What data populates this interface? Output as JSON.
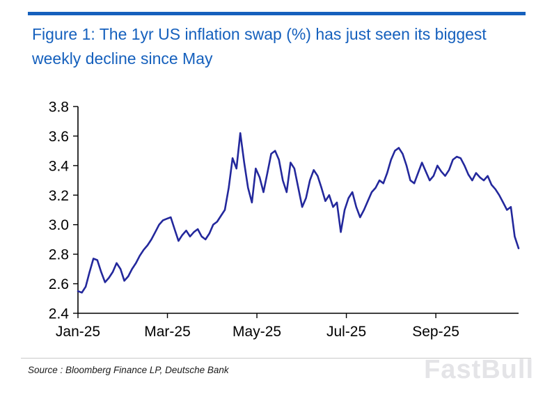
{
  "figure": {
    "title": "Figure 1: The 1yr US inflation swap (%) has just seen its biggest weekly decline since May",
    "accent_color": "#1560bd"
  },
  "footer": {
    "source": "Source : Bloomberg Finance LP, Deutsche Bank",
    "watermark": "FastBull"
  },
  "chart_data": {
    "type": "line",
    "title": "Figure 1: The 1yr US inflation swap (%) has just seen its biggest weekly decline since May",
    "series_name": "1yr US inflation swap (%)",
    "line_color": "#23289c",
    "grid": false,
    "legend": "none",
    "ylim": [
      2.4,
      3.8
    ],
    "yticks": [
      2.4,
      2.6,
      2.8,
      3.0,
      3.2,
      3.4,
      3.6,
      3.8
    ],
    "x_months_range": [
      0,
      9.85
    ],
    "xticks": [
      {
        "pos": 0,
        "label": "Jan-25"
      },
      {
        "pos": 2,
        "label": "Mar-25"
      },
      {
        "pos": 4,
        "label": "May-25"
      },
      {
        "pos": 6,
        "label": "Jul-25"
      },
      {
        "pos": 8,
        "label": "Sep-25"
      }
    ],
    "values": [
      2.55,
      2.54,
      2.58,
      2.68,
      2.77,
      2.76,
      2.68,
      2.61,
      2.64,
      2.68,
      2.74,
      2.7,
      2.62,
      2.65,
      2.7,
      2.74,
      2.79,
      2.83,
      2.86,
      2.9,
      2.95,
      3.0,
      3.03,
      3.04,
      3.05,
      2.97,
      2.89,
      2.93,
      2.96,
      2.92,
      2.95,
      2.97,
      2.92,
      2.9,
      2.94,
      3.0,
      3.02,
      3.06,
      3.1,
      3.25,
      3.45,
      3.38,
      3.62,
      3.42,
      3.25,
      3.15,
      3.38,
      3.32,
      3.22,
      3.35,
      3.48,
      3.5,
      3.44,
      3.3,
      3.22,
      3.42,
      3.38,
      3.25,
      3.12,
      3.18,
      3.3,
      3.37,
      3.33,
      3.25,
      3.16,
      3.2,
      3.12,
      3.15,
      2.95,
      3.1,
      3.18,
      3.22,
      3.12,
      3.05,
      3.1,
      3.16,
      3.22,
      3.25,
      3.3,
      3.28,
      3.35,
      3.44,
      3.5,
      3.52,
      3.48,
      3.4,
      3.3,
      3.28,
      3.35,
      3.42,
      3.36,
      3.3,
      3.33,
      3.4,
      3.36,
      3.33,
      3.37,
      3.44,
      3.46,
      3.45,
      3.4,
      3.34,
      3.3,
      3.35,
      3.32,
      3.3,
      3.33,
      3.27,
      3.24,
      3.2,
      3.15,
      3.1,
      3.12,
      2.92,
      2.84
    ]
  }
}
